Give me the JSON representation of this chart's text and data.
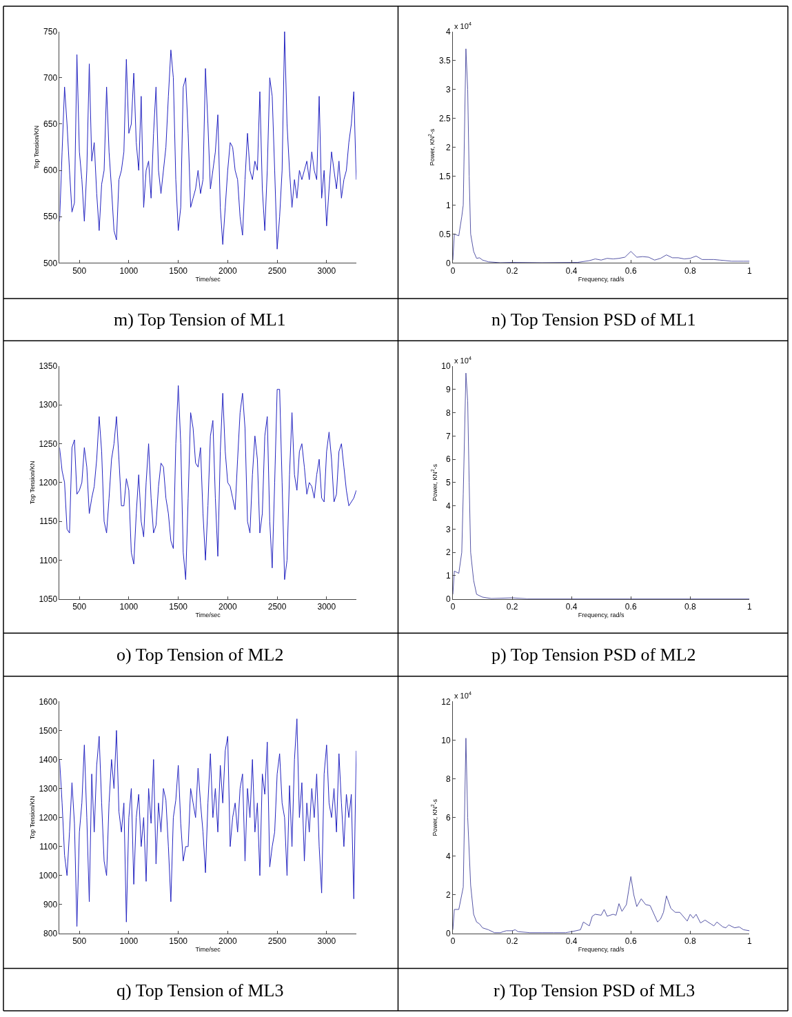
{
  "chart_data": [
    {
      "type": "line",
      "title": "m) Top Tension of ML1",
      "xlabel": "Time/sec",
      "ylabel": "Top Tension/KN",
      "color": "#2323c0",
      "grid": false,
      "xlim": [
        300,
        3300
      ],
      "xticks": [
        500,
        1000,
        1500,
        2000,
        2500,
        3000
      ],
      "ylim": [
        500,
        750
      ],
      "yticks": [
        500,
        550,
        600,
        650,
        700,
        750
      ],
      "x": [
        300,
        325,
        350,
        375,
        400,
        425,
        450,
        475,
        500,
        525,
        550,
        575,
        600,
        625,
        650,
        675,
        700,
        725,
        750,
        775,
        800,
        825,
        850,
        875,
        900,
        925,
        950,
        975,
        1000,
        1025,
        1050,
        1075,
        1100,
        1125,
        1150,
        1175,
        1200,
        1225,
        1250,
        1275,
        1300,
        1325,
        1350,
        1375,
        1400,
        1425,
        1450,
        1475,
        1500,
        1525,
        1550,
        1575,
        1600,
        1625,
        1650,
        1675,
        1700,
        1725,
        1750,
        1775,
        1800,
        1825,
        1850,
        1875,
        1900,
        1925,
        1950,
        1975,
        2000,
        2025,
        2050,
        2075,
        2100,
        2125,
        2150,
        2175,
        2200,
        2225,
        2250,
        2275,
        2300,
        2325,
        2350,
        2375,
        2400,
        2425,
        2450,
        2475,
        2500,
        2525,
        2550,
        2575,
        2600,
        2625,
        2650,
        2675,
        2700,
        2725,
        2750,
        2775,
        2800,
        2825,
        2850,
        2875,
        2900,
        2925,
        2950,
        2975,
        3000,
        3025,
        3050,
        3075,
        3100,
        3125,
        3150,
        3175,
        3200,
        3225,
        3250,
        3275,
        3300
      ],
      "values": [
        545,
        620,
        690,
        650,
        600,
        555,
        565,
        725,
        620,
        590,
        545,
        600,
        715,
        610,
        630,
        575,
        535,
        585,
        600,
        690,
        620,
        580,
        535,
        525,
        590,
        600,
        620,
        720,
        640,
        650,
        705,
        630,
        600,
        680,
        560,
        600,
        610,
        570,
        640,
        690,
        600,
        575,
        600,
        625,
        680,
        730,
        700,
        590,
        535,
        560,
        690,
        700,
        640,
        560,
        570,
        580,
        600,
        575,
        590,
        710,
        650,
        580,
        600,
        620,
        660,
        560,
        520,
        560,
        600,
        630,
        625,
        600,
        590,
        550,
        530,
        590,
        640,
        600,
        590,
        610,
        600,
        685,
        580,
        535,
        600,
        700,
        680,
        600,
        515,
        550,
        600,
        750,
        650,
        600,
        560,
        590,
        570,
        600,
        590,
        600,
        610,
        590,
        620,
        600,
        590,
        680,
        570,
        600,
        540,
        580,
        620,
        600,
        580,
        610,
        570,
        590,
        600,
        630,
        650,
        685,
        590
      ]
    },
    {
      "type": "line",
      "title": "n) Top Tension PSD of ML1",
      "xlabel": "Frequency, rad/s",
      "ylabel": "Power, KN$^{2}$-s",
      "annotations": [
        "x 10$^{4}$"
      ],
      "color": "#5656a6",
      "grid": false,
      "xlim": [
        0,
        1
      ],
      "xticks": [
        0,
        0.2,
        0.4,
        0.6,
        0.8,
        1
      ],
      "ylim": [
        0,
        4
      ],
      "yticks": [
        0,
        0.5,
        1,
        1.5,
        2,
        2.5,
        3,
        3.5,
        4
      ],
      "x": [
        0,
        0.005,
        0.02,
        0.03,
        0.035,
        0.044,
        0.05,
        0.055,
        0.06,
        0.07,
        0.08,
        0.09,
        0.1,
        0.12,
        0.16,
        0.2,
        0.3,
        0.42,
        0.46,
        0.48,
        0.5,
        0.52,
        0.54,
        0.56,
        0.58,
        0.6,
        0.62,
        0.64,
        0.66,
        0.68,
        0.7,
        0.72,
        0.74,
        0.76,
        0.78,
        0.8,
        0.82,
        0.84,
        0.86,
        0.88,
        0.9,
        0.92,
        0.94,
        0.96,
        0.98,
        1.0
      ],
      "values": [
        0.05,
        0.5,
        0.47,
        0.8,
        1.0,
        3.7,
        3.0,
        1.5,
        0.5,
        0.2,
        0.08,
        0.09,
        0.05,
        0.02,
        0.005,
        0.01,
        0.005,
        0.01,
        0.04,
        0.07,
        0.05,
        0.08,
        0.07,
        0.08,
        0.1,
        0.2,
        0.1,
        0.11,
        0.1,
        0.05,
        0.08,
        0.14,
        0.09,
        0.09,
        0.07,
        0.08,
        0.12,
        0.06,
        0.06,
        0.06,
        0.05,
        0.04,
        0.03,
        0.03,
        0.03,
        0.03
      ]
    },
    {
      "type": "line",
      "title": "o) Top Tension of ML2",
      "xlabel": "Time/sec",
      "ylabel": "Top Tension/KN",
      "color": "#2323c0",
      "grid": false,
      "xlim": [
        300,
        3300
      ],
      "xticks": [
        500,
        1000,
        1500,
        2000,
        2500,
        3000
      ],
      "ylim": [
        1050,
        1350
      ],
      "yticks": [
        1050,
        1100,
        1150,
        1200,
        1250,
        1300,
        1350
      ],
      "x": [
        300,
        325,
        350,
        375,
        400,
        425,
        450,
        475,
        500,
        525,
        550,
        575,
        600,
        625,
        650,
        675,
        700,
        725,
        750,
        775,
        800,
        825,
        850,
        875,
        900,
        925,
        950,
        975,
        1000,
        1025,
        1050,
        1075,
        1100,
        1125,
        1150,
        1175,
        1200,
        1225,
        1250,
        1275,
        1300,
        1325,
        1350,
        1375,
        1400,
        1425,
        1450,
        1475,
        1500,
        1525,
        1550,
        1575,
        1600,
        1625,
        1650,
        1675,
        1700,
        1725,
        1750,
        1775,
        1800,
        1825,
        1850,
        1875,
        1900,
        1925,
        1950,
        1975,
        2000,
        2025,
        2050,
        2075,
        2100,
        2125,
        2150,
        2175,
        2200,
        2225,
        2250,
        2275,
        2300,
        2325,
        2350,
        2375,
        2400,
        2425,
        2450,
        2475,
        2500,
        2525,
        2550,
        2575,
        2600,
        2625,
        2650,
        2675,
        2700,
        2725,
        2750,
        2775,
        2800,
        2825,
        2850,
        2875,
        2900,
        2925,
        2950,
        2975,
        3000,
        3025,
        3050,
        3075,
        3100,
        3125,
        3150,
        3175,
        3200,
        3225,
        3250,
        3275,
        3300
      ],
      "values": [
        1245,
        1215,
        1200,
        1140,
        1135,
        1245,
        1255,
        1185,
        1190,
        1200,
        1245,
        1220,
        1160,
        1180,
        1195,
        1230,
        1285,
        1240,
        1150,
        1135,
        1180,
        1230,
        1250,
        1285,
        1230,
        1170,
        1170,
        1205,
        1190,
        1110,
        1095,
        1160,
        1210,
        1150,
        1130,
        1200,
        1250,
        1180,
        1135,
        1145,
        1195,
        1225,
        1220,
        1180,
        1160,
        1125,
        1115,
        1250,
        1325,
        1250,
        1110,
        1075,
        1180,
        1290,
        1270,
        1225,
        1220,
        1245,
        1160,
        1100,
        1170,
        1260,
        1280,
        1180,
        1105,
        1240,
        1315,
        1240,
        1200,
        1195,
        1180,
        1165,
        1230,
        1290,
        1315,
        1270,
        1150,
        1135,
        1210,
        1260,
        1230,
        1135,
        1160,
        1260,
        1285,
        1150,
        1090,
        1200,
        1320,
        1320,
        1200,
        1075,
        1100,
        1210,
        1290,
        1210,
        1190,
        1240,
        1250,
        1220,
        1185,
        1200,
        1195,
        1180,
        1210,
        1230,
        1180,
        1175,
        1240,
        1265,
        1230,
        1175,
        1185,
        1240,
        1250,
        1220,
        1190,
        1170,
        1175,
        1180,
        1190
      ]
    },
    {
      "type": "line",
      "title": "p) Top Tension PSD of ML2",
      "xlabel": "Frequency, rad/s",
      "ylabel": "Power, KN$^{2}$-s",
      "annotations": [
        "x 10$^{4}$"
      ],
      "color": "#5656a6",
      "grid": false,
      "xlim": [
        0,
        1
      ],
      "xticks": [
        0,
        0.2,
        0.4,
        0.6,
        0.8,
        1
      ],
      "ylim": [
        0,
        10
      ],
      "yticks": [
        0,
        1,
        2,
        3,
        4,
        5,
        6,
        7,
        8,
        9,
        10
      ],
      "x": [
        0,
        0.005,
        0.02,
        0.03,
        0.035,
        0.044,
        0.05,
        0.055,
        0.06,
        0.07,
        0.08,
        0.1,
        0.13,
        0.2,
        0.25,
        0.4,
        0.6,
        0.8,
        1.0
      ],
      "values": [
        0.2,
        1.2,
        1.1,
        2.0,
        4.5,
        9.7,
        8.5,
        5,
        2,
        0.8,
        0.2,
        0.08,
        0.02,
        0.05,
        0.01,
        0.01,
        0.01,
        0.01,
        0.01
      ]
    },
    {
      "type": "line",
      "title": "q) Top Tension of ML3",
      "xlabel": "Time/sec",
      "ylabel": "Top Tension/KN",
      "color": "#2323c0",
      "grid": false,
      "xlim": [
        300,
        3300
      ],
      "xticks": [
        500,
        1000,
        1500,
        2000,
        2500,
        3000
      ],
      "ylim": [
        800,
        1600
      ],
      "yticks": [
        800,
        900,
        1000,
        1100,
        1200,
        1300,
        1400,
        1500,
        1600
      ],
      "x": [
        300,
        325,
        350,
        375,
        400,
        425,
        450,
        475,
        500,
        525,
        550,
        575,
        600,
        625,
        650,
        675,
        700,
        725,
        750,
        775,
        800,
        825,
        850,
        875,
        900,
        925,
        950,
        975,
        1000,
        1025,
        1050,
        1075,
        1100,
        1125,
        1150,
        1175,
        1200,
        1225,
        1250,
        1275,
        1300,
        1325,
        1350,
        1375,
        1400,
        1425,
        1450,
        1475,
        1500,
        1525,
        1550,
        1575,
        1600,
        1625,
        1650,
        1675,
        1700,
        1725,
        1750,
        1775,
        1800,
        1825,
        1850,
        1875,
        1900,
        1925,
        1950,
        1975,
        2000,
        2025,
        2050,
        2075,
        2100,
        2125,
        2150,
        2175,
        2200,
        2225,
        2250,
        2275,
        2300,
        2325,
        2350,
        2375,
        2400,
        2425,
        2450,
        2475,
        2500,
        2525,
        2550,
        2575,
        2600,
        2625,
        2650,
        2675,
        2700,
        2725,
        2750,
        2775,
        2800,
        2825,
        2850,
        2875,
        2900,
        2925,
        2950,
        2975,
        3000,
        3025,
        3050,
        3075,
        3100,
        3125,
        3150,
        3175,
        3200,
        3225,
        3250,
        3275,
        3300
      ],
      "values": [
        1400,
        1250,
        1070,
        1000,
        1150,
        1320,
        1180,
        825,
        1150,
        1250,
        1450,
        1200,
        910,
        1350,
        1150,
        1380,
        1480,
        1250,
        1050,
        1000,
        1250,
        1400,
        1300,
        1500,
        1220,
        1150,
        1250,
        840,
        1200,
        1300,
        970,
        1200,
        1280,
        1100,
        1200,
        980,
        1300,
        1180,
        1400,
        1040,
        1250,
        1150,
        1300,
        1260,
        1100,
        910,
        1200,
        1260,
        1380,
        1180,
        1050,
        1100,
        1100,
        1300,
        1250,
        1200,
        1370,
        1250,
        1150,
        1010,
        1250,
        1420,
        1200,
        1300,
        1150,
        1380,
        1250,
        1430,
        1480,
        1100,
        1200,
        1250,
        1150,
        1300,
        1350,
        1050,
        1300,
        1200,
        1400,
        1150,
        1250,
        1000,
        1350,
        1280,
        1460,
        1030,
        1100,
        1150,
        1350,
        1420,
        1250,
        1200,
        1000,
        1310,
        1100,
        1400,
        1540,
        1200,
        1320,
        1050,
        1250,
        1150,
        1300,
        1200,
        1350,
        1100,
        940,
        1350,
        1450,
        1250,
        1200,
        1300,
        1150,
        1420,
        1250,
        1100,
        1280,
        1200,
        1280,
        920,
        1430
      ]
    },
    {
      "type": "line",
      "title": "r) Top Tension PSD of ML3",
      "xlabel": "Frequency, rad/s",
      "ylabel": "Power, KN$^{2}$-s",
      "annotations": [
        "x 10$^{4}$"
      ],
      "color": "#5656a6",
      "grid": false,
      "xlim": [
        0,
        1
      ],
      "xticks": [
        0,
        0.2,
        0.4,
        0.6,
        0.8,
        1
      ],
      "ylim": [
        0,
        12
      ],
      "yticks": [
        0,
        2,
        4,
        6,
        8,
        10,
        12
      ],
      "x": [
        0,
        0.005,
        0.02,
        0.035,
        0.044,
        0.05,
        0.06,
        0.07,
        0.08,
        0.09,
        0.1,
        0.12,
        0.14,
        0.16,
        0.18,
        0.2,
        0.21,
        0.22,
        0.26,
        0.3,
        0.34,
        0.38,
        0.4,
        0.43,
        0.44,
        0.46,
        0.47,
        0.48,
        0.5,
        0.51,
        0.52,
        0.54,
        0.55,
        0.56,
        0.57,
        0.585,
        0.6,
        0.61,
        0.62,
        0.635,
        0.65,
        0.665,
        0.69,
        0.7,
        0.71,
        0.72,
        0.735,
        0.75,
        0.765,
        0.79,
        0.8,
        0.81,
        0.82,
        0.835,
        0.85,
        0.87,
        0.88,
        0.89,
        0.91,
        0.92,
        0.93,
        0.95,
        0.965,
        0.98,
        1.0
      ],
      "values": [
        0.2,
        1.25,
        1.25,
        2.4,
        10.1,
        6,
        2.5,
        1.0,
        0.6,
        0.5,
        0.3,
        0.2,
        0.05,
        0.05,
        0.15,
        0.15,
        0.2,
        0.1,
        0.05,
        0.05,
        0.05,
        0.05,
        0.1,
        0.2,
        0.6,
        0.4,
        0.9,
        1.0,
        0.95,
        1.25,
        0.9,
        1.0,
        0.95,
        1.55,
        1.15,
        1.5,
        2.95,
        2.0,
        1.4,
        1.8,
        1.5,
        1.45,
        0.6,
        0.75,
        1.1,
        1.95,
        1.3,
        1.1,
        1.1,
        0.65,
        1.0,
        0.8,
        1.0,
        0.55,
        0.7,
        0.5,
        0.4,
        0.6,
        0.35,
        0.3,
        0.45,
        0.3,
        0.35,
        0.2,
        0.15
      ]
    }
  ]
}
